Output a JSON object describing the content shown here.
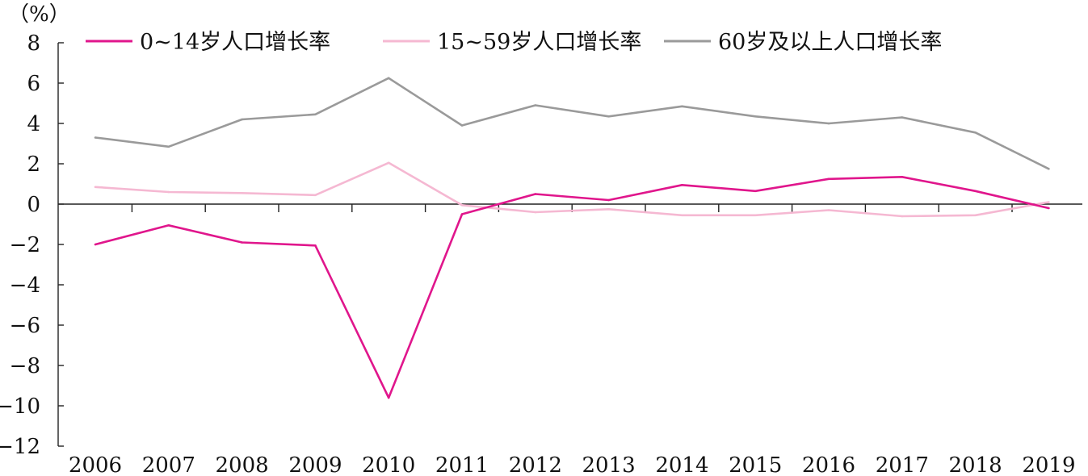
{
  "chart_data": {
    "type": "line",
    "title": "",
    "xlabel": "",
    "ylabel": "",
    "unit_label": "（%）",
    "x": [
      "2006",
      "2007",
      "2008",
      "2009",
      "2010",
      "2011",
      "2012",
      "2013",
      "2014",
      "2015",
      "2016",
      "2017",
      "2018",
      "2019"
    ],
    "ylim": [
      -12,
      8
    ],
    "yticks": [
      8,
      6,
      4,
      2,
      0,
      -2,
      -4,
      -6,
      -8,
      -10,
      -12
    ],
    "ytick_labels": [
      "8",
      "6",
      "4",
      "2",
      "0",
      "−2",
      "−4",
      "−6",
      "−8",
      "−10",
      "−12"
    ],
    "grid": false,
    "legend_position": "top",
    "series": [
      {
        "name": "0~14岁人口增长率",
        "color": "#e0168c",
        "values": [
          -2.0,
          -1.05,
          -1.9,
          -2.05,
          -9.6,
          -0.5,
          0.5,
          0.2,
          0.95,
          0.65,
          1.25,
          1.35,
          0.65,
          -0.2
        ]
      },
      {
        "name": "15~59岁人口增长率",
        "color": "#f5b8d2",
        "values": [
          0.85,
          0.6,
          0.55,
          0.45,
          2.05,
          -0.05,
          -0.4,
          -0.25,
          -0.55,
          -0.55,
          -0.3,
          -0.6,
          -0.55,
          0.1
        ]
      },
      {
        "name": "60岁及以上人口增长率",
        "color": "#9a9a9a",
        "values": [
          3.3,
          2.85,
          4.2,
          4.45,
          6.25,
          3.9,
          4.9,
          4.35,
          4.85,
          4.35,
          4.0,
          4.3,
          3.55,
          1.75
        ]
      }
    ]
  }
}
